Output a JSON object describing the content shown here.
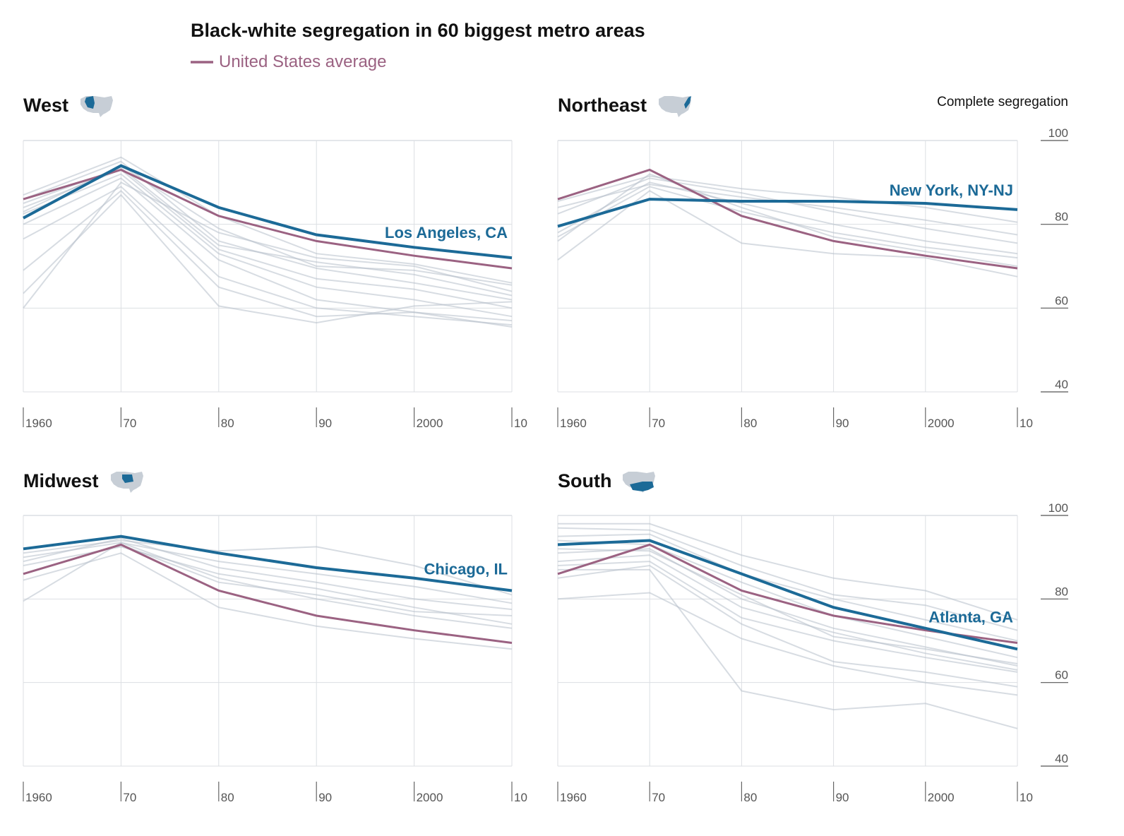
{
  "chart_data": {
    "type": "line",
    "title": "Black-white segregation in 60 biggest metro areas",
    "legend": [
      {
        "name": "United States average",
        "color": "#9b6282"
      }
    ],
    "ylabel": "Complete segregation",
    "ylim": [
      40,
      100
    ],
    "yticks": [
      "100",
      "80",
      "60",
      "40"
    ],
    "x": [
      1960,
      1970,
      1980,
      1990,
      2000,
      2010
    ],
    "xticks": [
      "1960",
      "70",
      "80",
      "90",
      "2000",
      "10"
    ],
    "us_average": [
      86,
      93,
      82,
      76,
      72.5,
      69.5
    ],
    "colors": {
      "highlight": "#1c6a97",
      "average": "#9b6282",
      "background": "#b7c0cb",
      "grid": "#dcdfe3",
      "map": "#c7ced6"
    },
    "panels": [
      {
        "name": "West",
        "map_icon": "us-map-west-icon",
        "highlight": {
          "name": "Los Angeles, CA",
          "values": [
            81.5,
            94,
            84,
            77.5,
            74.5,
            72
          ]
        },
        "series": [
          [
            87,
            96,
            82,
            73,
            70.5,
            66
          ],
          [
            86,
            95,
            76,
            69.5,
            66,
            62
          ],
          [
            84,
            93,
            74,
            67,
            64.5,
            60
          ],
          [
            82.5,
            92,
            73,
            65,
            62,
            58
          ],
          [
            80,
            91,
            71.5,
            62,
            59,
            57
          ],
          [
            76.5,
            89,
            67.5,
            60,
            58,
            56
          ],
          [
            69,
            88,
            65,
            58,
            59,
            55.5
          ],
          [
            63.5,
            87,
            60.5,
            56.5,
            60.5,
            61.5
          ],
          [
            60,
            90,
            78,
            72,
            70,
            64
          ],
          [
            85,
            93.5,
            75,
            71,
            68,
            63
          ],
          [
            83,
            94,
            79,
            70,
            69,
            65.5
          ]
        ]
      },
      {
        "name": "Northeast",
        "map_icon": "us-map-northeast-icon",
        "highlight": {
          "name": "New York, NY-NJ",
          "values": [
            79.5,
            86,
            85.5,
            85.5,
            85,
            83.5
          ]
        },
        "series": [
          [
            85.5,
            91.5,
            88.5,
            86.5,
            84,
            80.5
          ],
          [
            84,
            89.5,
            86.5,
            84,
            81,
            77.5
          ],
          [
            82.5,
            91,
            87.5,
            83,
            79,
            75.5
          ],
          [
            78,
            90,
            85,
            80,
            76,
            73
          ],
          [
            76,
            92,
            84,
            77,
            73.5,
            70
          ],
          [
            71.5,
            88,
            75.5,
            73,
            72,
            67.5
          ],
          [
            77,
            89,
            83,
            78,
            74.5,
            72
          ]
        ]
      },
      {
        "name": "Midwest",
        "map_icon": "us-map-midwest-icon",
        "highlight": {
          "name": "Chicago, IL",
          "values": [
            92,
            95,
            91,
            87.5,
            85,
            82
          ]
        },
        "series": [
          [
            91,
            94,
            91.5,
            92.5,
            88,
            81
          ],
          [
            90,
            93.5,
            89,
            86,
            83,
            79
          ],
          [
            89,
            94.5,
            87.5,
            84,
            80,
            77.5
          ],
          [
            88,
            92.5,
            86,
            82.5,
            78,
            74
          ],
          [
            86,
            93,
            84,
            81,
            77,
            76
          ],
          [
            84.5,
            91,
            78,
            73.5,
            70.5,
            68
          ],
          [
            79.5,
            93.5,
            85,
            80,
            76,
            73
          ]
        ]
      },
      {
        "name": "South",
        "map_icon": "us-map-south-icon",
        "highlight": {
          "name": "Atlanta, GA",
          "values": [
            93,
            94,
            86,
            78,
            73,
            68
          ]
        },
        "series": [
          [
            98,
            98,
            90.5,
            85,
            82,
            75
          ],
          [
            97,
            96.5,
            88,
            81,
            78.5,
            72.5
          ],
          [
            95,
            95.5,
            86,
            80,
            75,
            70
          ],
          [
            94,
            93,
            84,
            76,
            71,
            66
          ],
          [
            91,
            92,
            80,
            73,
            68.5,
            64
          ],
          [
            89,
            90.5,
            78,
            72,
            67,
            63
          ],
          [
            88,
            89,
            75.5,
            70,
            66,
            62.5
          ],
          [
            85,
            88,
            74,
            65,
            62.5,
            59
          ],
          [
            80,
            81.5,
            70.5,
            64,
            60,
            57
          ],
          [
            87,
            87,
            58,
            53.5,
            55,
            49
          ],
          [
            92,
            91.5,
            81,
            71,
            68,
            64.5
          ]
        ]
      }
    ]
  }
}
